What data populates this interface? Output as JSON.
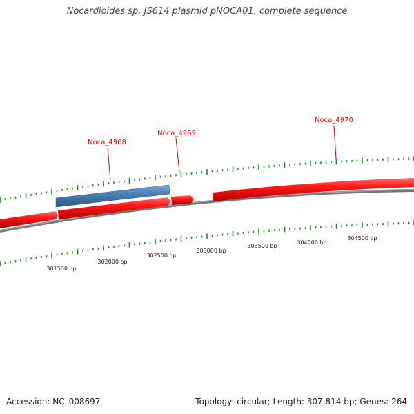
{
  "title": "Nocardioides sp. JS614 plasmid pNOCA01, complete sequence",
  "footer": {
    "accession": "Accession: NC_008697",
    "stats": "Topology: circular; Length: 307,814 bp; Genes: 264"
  },
  "gene_labels": [
    "Noca_4968",
    "Noca_4969",
    "Noca_4970"
  ],
  "scale_labels": [
    "301500 bp",
    "302000 bp",
    "302500 bp",
    "303000 bp",
    "303500 bp",
    "304000 bp",
    "304500 bp"
  ],
  "colors": {
    "gene": "#ee1111",
    "rna": "#4a7fb5",
    "backbone": "#808080",
    "ticks": "#1f8a1f",
    "label": "#e00000"
  }
}
